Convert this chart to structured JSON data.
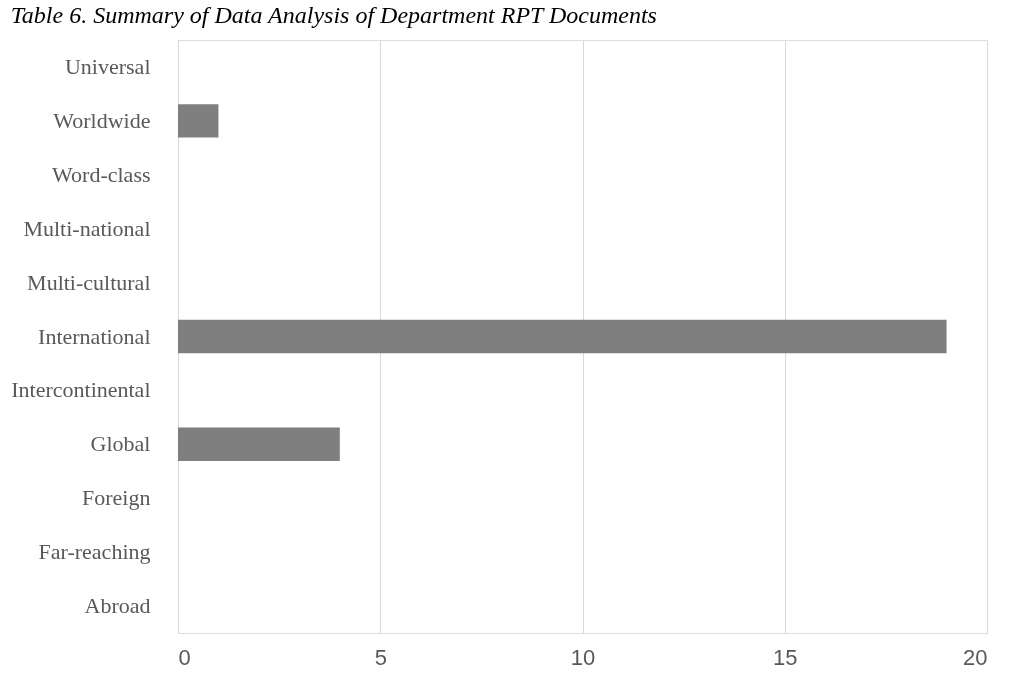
{
  "chart_data": {
    "type": "bar",
    "orientation": "horizontal",
    "title": "Table 6. Summary of Data Analysis of Department RPT Documents",
    "categories": [
      "Universal",
      "Worldwide",
      "Word-class",
      "Multi-national",
      "Multi-cultural",
      "International",
      "Intercontinental",
      "Global",
      "Foreign",
      "Far-reaching",
      "Abroad"
    ],
    "values": [
      0,
      1,
      0,
      0,
      0,
      19,
      0,
      4,
      0,
      0,
      0
    ],
    "color": "#7f7f7f",
    "xlim": [
      0,
      20
    ],
    "xticks": [
      0,
      5,
      10,
      15,
      20
    ],
    "grid": "x"
  }
}
